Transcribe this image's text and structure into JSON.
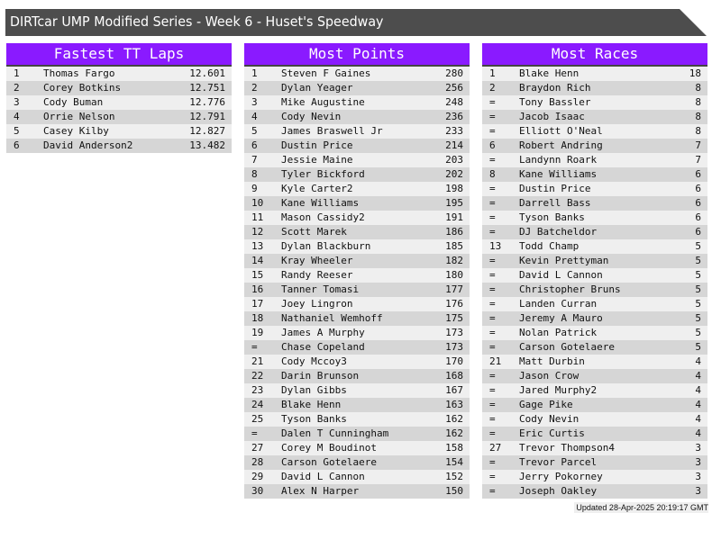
{
  "title": "DIRTcar UMP Modified Series - Week 6 - Huset's Speedway",
  "colors": {
    "header": "#8a1aff",
    "titlebar": "#4d4d4d"
  },
  "tables": [
    {
      "title": "Fastest TT Laps",
      "rows": [
        [
          "1",
          "Thomas Fargo",
          "12.601"
        ],
        [
          "2",
          "Corey Botkins",
          "12.751"
        ],
        [
          "3",
          "Cody Buman",
          "12.776"
        ],
        [
          "4",
          "Orrie Nelson",
          "12.791"
        ],
        [
          "5",
          "Casey Kilby",
          "12.827"
        ],
        [
          "6",
          "David Anderson2",
          "13.482"
        ]
      ]
    },
    {
      "title": "Most Points",
      "rows": [
        [
          "1",
          "Steven F Gaines",
          "280"
        ],
        [
          "2",
          "Dylan Yeager",
          "256"
        ],
        [
          "3",
          "Mike Augustine",
          "248"
        ],
        [
          "4",
          "Cody Nevin",
          "236"
        ],
        [
          "5",
          "James Braswell Jr",
          "233"
        ],
        [
          "6",
          "Dustin Price",
          "214"
        ],
        [
          "7",
          "Jessie Maine",
          "203"
        ],
        [
          "8",
          "Tyler Bickford",
          "202"
        ],
        [
          "9",
          "Kyle Carter2",
          "198"
        ],
        [
          "10",
          "Kane Williams",
          "195"
        ],
        [
          "11",
          "Mason Cassidy2",
          "191"
        ],
        [
          "12",
          "Scott Marek",
          "186"
        ],
        [
          "13",
          "Dylan Blackburn",
          "185"
        ],
        [
          "14",
          "Kray Wheeler",
          "182"
        ],
        [
          "15",
          "Randy Reeser",
          "180"
        ],
        [
          "16",
          "Tanner Tomasi",
          "177"
        ],
        [
          "17",
          "Joey Lingron",
          "176"
        ],
        [
          "18",
          "Nathaniel Wemhoff",
          "175"
        ],
        [
          "19",
          "James A Murphy",
          "173"
        ],
        [
          "=",
          "Chase Copeland",
          "173"
        ],
        [
          "21",
          "Cody Mccoy3",
          "170"
        ],
        [
          "22",
          "Darin Brunson",
          "168"
        ],
        [
          "23",
          "Dylan Gibbs",
          "167"
        ],
        [
          "24",
          "Blake Henn",
          "163"
        ],
        [
          "25",
          "Tyson Banks",
          "162"
        ],
        [
          "=",
          "Dalen T Cunningham",
          "162"
        ],
        [
          "27",
          "Corey M Boudinot",
          "158"
        ],
        [
          "28",
          "Carson Gotelaere",
          "154"
        ],
        [
          "29",
          "David L Cannon",
          "152"
        ],
        [
          "30",
          "Alex N Harper",
          "150"
        ]
      ]
    },
    {
      "title": "Most Races",
      "rows": [
        [
          "1",
          "Blake Henn",
          "18"
        ],
        [
          "2",
          "Braydon Rich",
          "8"
        ],
        [
          "=",
          "Tony Bassler",
          "8"
        ],
        [
          "=",
          "Jacob Isaac",
          "8"
        ],
        [
          "=",
          "Elliott O'Neal",
          "8"
        ],
        [
          "6",
          "Robert Andring",
          "7"
        ],
        [
          "=",
          "Landynn Roark",
          "7"
        ],
        [
          "8",
          "Kane Williams",
          "6"
        ],
        [
          "=",
          "Dustin Price",
          "6"
        ],
        [
          "=",
          "Darrell Bass",
          "6"
        ],
        [
          "=",
          "Tyson Banks",
          "6"
        ],
        [
          "=",
          "DJ Batcheldor",
          "6"
        ],
        [
          "13",
          "Todd Champ",
          "5"
        ],
        [
          "=",
          "Kevin Prettyman",
          "5"
        ],
        [
          "=",
          "David L Cannon",
          "5"
        ],
        [
          "=",
          "Christopher Bruns",
          "5"
        ],
        [
          "=",
          "Landen Curran",
          "5"
        ],
        [
          "=",
          "Jeremy A Mauro",
          "5"
        ],
        [
          "=",
          "Nolan Patrick",
          "5"
        ],
        [
          "=",
          "Carson Gotelaere",
          "5"
        ],
        [
          "21",
          "Matt Durbin",
          "4"
        ],
        [
          "=",
          "Jason Crow",
          "4"
        ],
        [
          "=",
          "Jared Murphy2",
          "4"
        ],
        [
          "=",
          "Gage Pike",
          "4"
        ],
        [
          "=",
          "Cody Nevin",
          "4"
        ],
        [
          "=",
          "Eric Curtis",
          "4"
        ],
        [
          "27",
          "Trevor Thompson4",
          "3"
        ],
        [
          "=",
          "Trevor Parcel",
          "3"
        ],
        [
          "=",
          "Jerry Pokorney",
          "3"
        ],
        [
          "=",
          "Joseph Oakley",
          "3"
        ]
      ]
    }
  ],
  "footer": "Updated 28-Apr-2025 20:19:17 GMT"
}
